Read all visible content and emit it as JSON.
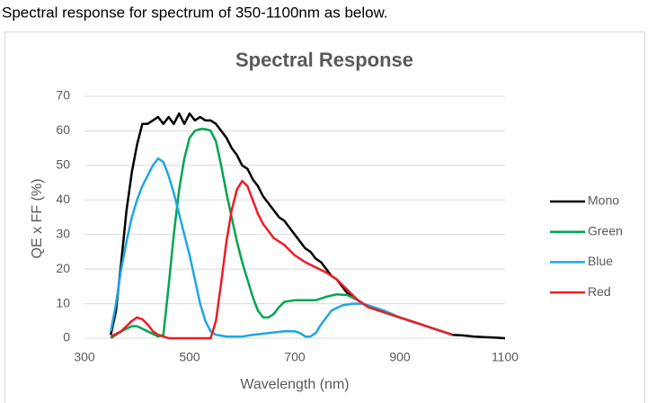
{
  "header": "Spectral response for spectrum of 350-1100nm as below.",
  "chart_data": {
    "type": "line",
    "title": "Spectral Response",
    "x_label": "Wavelength (nm)",
    "y_label": "QE x FF (%)",
    "xlim": [
      300,
      1100
    ],
    "xticks": [
      300,
      500,
      700,
      900,
      1100
    ],
    "ylim": [
      0,
      70
    ],
    "yticks": [
      0,
      10,
      20,
      30,
      40,
      50,
      60,
      70
    ],
    "grid": true,
    "legend": "right",
    "series": [
      {
        "name": "Mono",
        "color": "#000000",
        "x": [
          350,
          360,
          370,
          380,
          390,
          400,
          410,
          420,
          430,
          440,
          450,
          460,
          470,
          480,
          490,
          500,
          510,
          520,
          530,
          540,
          550,
          560,
          570,
          580,
          590,
          600,
          610,
          620,
          630,
          640,
          650,
          660,
          670,
          680,
          690,
          700,
          710,
          720,
          730,
          740,
          750,
          760,
          770,
          780,
          790,
          800,
          820,
          840,
          860,
          880,
          900,
          920,
          940,
          960,
          980,
          1000,
          1020,
          1040,
          1060,
          1080,
          1100
        ],
        "values": [
          1,
          8,
          22,
          37,
          48,
          56,
          62,
          62,
          63,
          64,
          62,
          64,
          62,
          65,
          62,
          65,
          63,
          64,
          63,
          63,
          62,
          60,
          58,
          55,
          53,
          50,
          49,
          46,
          44,
          41,
          39,
          37,
          35,
          34,
          32,
          30,
          28,
          26,
          25,
          23,
          22,
          20,
          18,
          17,
          15,
          13,
          11,
          9,
          8,
          7,
          6,
          5,
          4,
          3,
          2,
          1,
          0.8,
          0.5,
          0.3,
          0.2,
          0
        ]
      },
      {
        "name": "Green",
        "color": "#00a550",
        "x": [
          350,
          370,
          390,
          400,
          420,
          440,
          450,
          460,
          470,
          480,
          490,
          500,
          510,
          520,
          530,
          540,
          550,
          560,
          570,
          580,
          590,
          600,
          610,
          620,
          630,
          640,
          650,
          660,
          670,
          680,
          700,
          720,
          740,
          760,
          780,
          800,
          820,
          840,
          860,
          880,
          900,
          920,
          940,
          960,
          980,
          1000
        ],
        "values": [
          0,
          2,
          3.5,
          3.5,
          2,
          0.5,
          1,
          15,
          30,
          43,
          52,
          58,
          60,
          60.5,
          60.5,
          60,
          57,
          50,
          42,
          35,
          28,
          22,
          17,
          12,
          8,
          6,
          6,
          7,
          9,
          10.5,
          11,
          11,
          11,
          12,
          12.7,
          12.5,
          11,
          9,
          8,
          7,
          6,
          5,
          4,
          3,
          2,
          1
        ]
      },
      {
        "name": "Blue",
        "color": "#1ea7e1",
        "x": [
          350,
          360,
          370,
          380,
          390,
          400,
          410,
          420,
          430,
          440,
          450,
          460,
          470,
          480,
          490,
          500,
          510,
          520,
          530,
          540,
          550,
          570,
          600,
          620,
          650,
          680,
          700,
          710,
          720,
          730,
          740,
          750,
          760,
          770,
          790,
          810,
          830,
          850,
          870,
          900,
          920,
          940,
          960,
          980,
          1000
        ],
        "values": [
          2,
          10,
          20,
          28,
          35,
          40,
          44,
          47,
          50,
          52,
          51,
          47,
          42,
          36,
          30,
          24,
          17,
          10,
          5,
          2,
          1,
          0.5,
          0.5,
          1,
          1.5,
          2,
          2,
          1.5,
          0.5,
          0.5,
          1.5,
          4,
          6,
          8,
          9.5,
          10,
          10,
          9,
          8,
          6,
          5,
          4,
          3,
          2,
          1
        ]
      },
      {
        "name": "Red",
        "color": "#ee1c25",
        "x": [
          350,
          370,
          390,
          400,
          410,
          420,
          430,
          440,
          450,
          460,
          520,
          540,
          550,
          560,
          570,
          580,
          590,
          600,
          610,
          620,
          630,
          640,
          650,
          660,
          670,
          680,
          690,
          700,
          720,
          740,
          760,
          780,
          800,
          820,
          840,
          860,
          880,
          900,
          920,
          940,
          960,
          980,
          1000
        ],
        "values": [
          0.5,
          2,
          5,
          6,
          5.5,
          4,
          2,
          1,
          0.5,
          0,
          0,
          0,
          5,
          16,
          28,
          37,
          43,
          45.5,
          44,
          40,
          36,
          33,
          31,
          29,
          28,
          27,
          25.5,
          24,
          22,
          20.5,
          19,
          17,
          14,
          11,
          9,
          8,
          7,
          6,
          5,
          4,
          3,
          2,
          1
        ]
      }
    ]
  }
}
